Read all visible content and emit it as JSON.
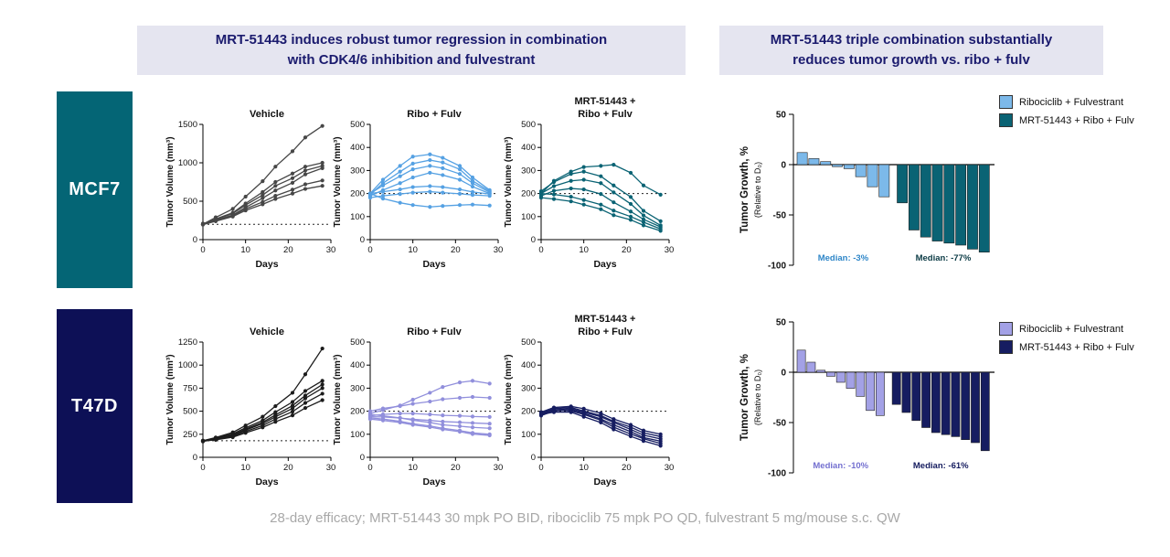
{
  "headers": {
    "left_line1": "MRT-51443 induces robust tumor regression in combination",
    "left_line2": "with CDK4/6 inhibition and fulvestrant",
    "right_line1": "MRT-51443 triple combination substantially",
    "right_line2": "reduces tumor growth vs. ribo + fulv"
  },
  "row_labels": [
    {
      "text": "MCF7",
      "bg": "#046575"
    },
    {
      "text": "T47D",
      "bg": "#0d1056"
    }
  ],
  "footer": "28-day efficacy; MRT-51443 30 mpk PO BID, ribociclib 75 mpk PO QD, fulvestrant 5 mg/mouse  s.c. QW",
  "colors": {
    "header_bg": "#e5e5f0",
    "header_text": "#1b1b6e",
    "mcf7_teal": "#046575",
    "t47d_navy": "#0d1056",
    "light_blue": "#55a1e3",
    "light_purple": "#918fdc",
    "footer_gray": "#a8a8a8"
  },
  "chart_data": [
    {
      "id": "mcf7-vehicle",
      "type": "line",
      "title": "Vehicle",
      "xlabel": "Days",
      "ylabel": "Tumor Volume (mm³)",
      "x": [
        0,
        3,
        7,
        10,
        14,
        17,
        21,
        24,
        28
      ],
      "xlim": [
        0,
        30
      ],
      "xticks": [
        0,
        10,
        20,
        30
      ],
      "ylim": [
        0,
        1500
      ],
      "yticks": [
        0,
        500,
        1000,
        1500
      ],
      "refline": 200,
      "color": "#474747",
      "series": [
        [
          200,
          290,
          400,
          560,
          760,
          950,
          1150,
          1330,
          1480
        ],
        [
          200,
          270,
          350,
          470,
          620,
          750,
          860,
          950,
          1000
        ],
        [
          200,
          260,
          340,
          450,
          580,
          700,
          800,
          900,
          960
        ],
        [
          200,
          250,
          320,
          420,
          540,
          640,
          740,
          850,
          930
        ],
        [
          210,
          250,
          310,
          400,
          490,
          570,
          650,
          720,
          770
        ],
        [
          195,
          240,
          300,
          380,
          460,
          530,
          600,
          660,
          700
        ]
      ]
    },
    {
      "id": "mcf7-ribo",
      "type": "line",
      "title": "Ribo + Fulv",
      "xlabel": "Days",
      "ylabel": "Tumor Volume (mm³)",
      "x": [
        0,
        3,
        7,
        10,
        14,
        17,
        21,
        24,
        28
      ],
      "xlim": [
        0,
        30
      ],
      "xticks": [
        0,
        10,
        20,
        30
      ],
      "ylim": [
        0,
        500
      ],
      "yticks": [
        0,
        100,
        200,
        300,
        400,
        500
      ],
      "refline": 200,
      "color": "#55a1e3",
      "series": [
        [
          200,
          260,
          320,
          360,
          370,
          355,
          320,
          270,
          215
        ],
        [
          195,
          245,
          295,
          330,
          345,
          335,
          305,
          255,
          210
        ],
        [
          200,
          235,
          275,
          305,
          320,
          310,
          285,
          245,
          205
        ],
        [
          190,
          215,
          245,
          270,
          290,
          280,
          260,
          230,
          200
        ],
        [
          200,
          208,
          218,
          228,
          232,
          228,
          218,
          207,
          198
        ],
        [
          182,
          190,
          198,
          204,
          208,
          204,
          199,
          194,
          190
        ],
        [
          200,
          178,
          160,
          150,
          142,
          146,
          150,
          152,
          148
        ]
      ]
    },
    {
      "id": "mcf7-triple",
      "type": "line",
      "title": "MRT-51443 +\nRibo + Fulv",
      "xlabel": "Days",
      "ylabel": "Tumor Volume (mm³)",
      "x": [
        0,
        3,
        7,
        10,
        14,
        17,
        21,
        24,
        28
      ],
      "xlim": [
        0,
        30
      ],
      "xticks": [
        0,
        10,
        20,
        30
      ],
      "ylim": [
        0,
        500
      ],
      "yticks": [
        0,
        100,
        200,
        300,
        400,
        500
      ],
      "refline": 200,
      "color": "#0a6374",
      "series": [
        [
          200,
          255,
          295,
          315,
          320,
          325,
          290,
          235,
          195
        ],
        [
          210,
          250,
          285,
          295,
          275,
          235,
          185,
          125,
          80
        ],
        [
          200,
          232,
          255,
          260,
          245,
          205,
          155,
          105,
          62
        ],
        [
          190,
          212,
          222,
          218,
          198,
          162,
          122,
          88,
          55
        ],
        [
          200,
          196,
          186,
          172,
          152,
          126,
          100,
          76,
          46
        ],
        [
          182,
          176,
          166,
          152,
          132,
          106,
          86,
          62,
          38
        ]
      ]
    },
    {
      "id": "mcf7-waterfall",
      "type": "waterfall",
      "ylabel": "Tumor Growth, %",
      "ylabel2": "(Relative to D₀)",
      "ylim": [
        -100,
        50
      ],
      "yticks": [
        50,
        0,
        -50,
        -100
      ],
      "groups": [
        {
          "name": "Ribociclib + Fulvestrant",
          "color": "#7cb9ea",
          "values": [
            12,
            6,
            3,
            -2,
            -4,
            -12,
            -22,
            -32
          ],
          "median_label": "Median: -3%",
          "median_color": "#2e86c8"
        },
        {
          "name": "MRT-51443 + Ribo + Fulv",
          "color": "#0a6374",
          "values": [
            -38,
            -65,
            -72,
            -76,
            -78,
            -80,
            -84,
            -87
          ],
          "median_label": "Median: -77%",
          "median_color": "#0a3a44"
        }
      ]
    },
    {
      "id": "t47d-vehicle",
      "type": "line",
      "title": "Vehicle",
      "xlabel": "Days",
      "ylabel": "Tumor Volume (mm³)",
      "x": [
        0,
        3,
        7,
        10,
        14,
        17,
        21,
        24,
        28
      ],
      "xlim": [
        0,
        30
      ],
      "xticks": [
        0,
        10,
        20,
        30
      ],
      "ylim": [
        0,
        1250
      ],
      "yticks": [
        0,
        250,
        500,
        750,
        1000,
        1250
      ],
      "refline": 180,
      "color": "#1c1c1c",
      "series": [
        [
          180,
          215,
          270,
          345,
          440,
          555,
          700,
          900,
          1180
        ],
        [
          178,
          208,
          255,
          320,
          400,
          490,
          600,
          720,
          830
        ],
        [
          180,
          205,
          245,
          305,
          380,
          460,
          560,
          670,
          790
        ],
        [
          172,
          198,
          235,
          295,
          365,
          440,
          530,
          640,
          750
        ],
        [
          180,
          195,
          228,
          280,
          345,
          415,
          495,
          590,
          690
        ],
        [
          175,
          190,
          218,
          265,
          325,
          385,
          455,
          535,
          620
        ]
      ]
    },
    {
      "id": "t47d-ribo",
      "type": "line",
      "title": "Ribo + Fulv",
      "xlabel": "Days",
      "ylabel": "Tumor Volume (mm³)",
      "x": [
        0,
        3,
        7,
        10,
        14,
        17,
        21,
        24,
        28
      ],
      "xlim": [
        0,
        30
      ],
      "xticks": [
        0,
        10,
        20,
        30
      ],
      "ylim": [
        0,
        500
      ],
      "yticks": [
        0,
        100,
        200,
        300,
        400,
        500
      ],
      "refline": 200,
      "color": "#918fdc",
      "series": [
        [
          190,
          205,
          225,
          250,
          280,
          305,
          325,
          332,
          320
        ],
        [
          200,
          212,
          222,
          232,
          242,
          252,
          258,
          262,
          258
        ],
        [
          180,
          186,
          190,
          190,
          186,
          182,
          180,
          177,
          175
        ],
        [
          176,
          175,
          170,
          165,
          160,
          155,
          152,
          149,
          146
        ],
        [
          186,
          180,
          171,
          161,
          151,
          141,
          135,
          130,
          126
        ],
        [
          171,
          166,
          156,
          146,
          136,
          126,
          116,
          106,
          100
        ],
        [
          166,
          160,
          151,
          141,
          131,
          121,
          111,
          101,
          95
        ]
      ]
    },
    {
      "id": "t47d-triple",
      "type": "line",
      "title": "MRT-51443 +\nRibo + Fulv",
      "xlabel": "Days",
      "ylabel": "Tumor Volume (mm³)",
      "x": [
        0,
        3,
        7,
        10,
        14,
        17,
        21,
        24,
        28
      ],
      "xlim": [
        0,
        30
      ],
      "xticks": [
        0,
        10,
        20,
        30
      ],
      "ylim": [
        0,
        500
      ],
      "yticks": [
        0,
        100,
        200,
        300,
        400,
        500
      ],
      "refline": 200,
      "color": "#161d61",
      "series": [
        [
          196,
          216,
          221,
          211,
          191,
          166,
          141,
          116,
          100
        ],
        [
          191,
          211,
          216,
          201,
          181,
          156,
          131,
          106,
          90
        ],
        [
          186,
          206,
          211,
          196,
          176,
          151,
          121,
          96,
          80
        ],
        [
          181,
          201,
          206,
          191,
          166,
          141,
          111,
          86,
          70
        ],
        [
          191,
          206,
          201,
          186,
          161,
          131,
          101,
          81,
          60
        ],
        [
          186,
          196,
          196,
          176,
          151,
          121,
          91,
          71,
          50
        ]
      ]
    },
    {
      "id": "t47d-waterfall",
      "type": "waterfall",
      "ylabel": "Tumor Growth, %",
      "ylabel2": "(Relative to D₀)",
      "ylim": [
        -100,
        50
      ],
      "yticks": [
        50,
        0,
        -50,
        -100
      ],
      "groups": [
        {
          "name": "Ribociclib + Fulvestrant",
          "color": "#a3a1e6",
          "values": [
            22,
            10,
            2,
            -4,
            -10,
            -16,
            -24,
            -38,
            -43
          ],
          "median_label": "Median: -10%",
          "median_color": "#7470d0"
        },
        {
          "name": "MRT-51443 + Ribo + Fulv",
          "color": "#161d61",
          "values": [
            -32,
            -40,
            -48,
            -55,
            -60,
            -62,
            -64,
            -67,
            -70,
            -78
          ],
          "median_label": "Median: -61%",
          "median_color": "#141b5e"
        }
      ]
    }
  ]
}
